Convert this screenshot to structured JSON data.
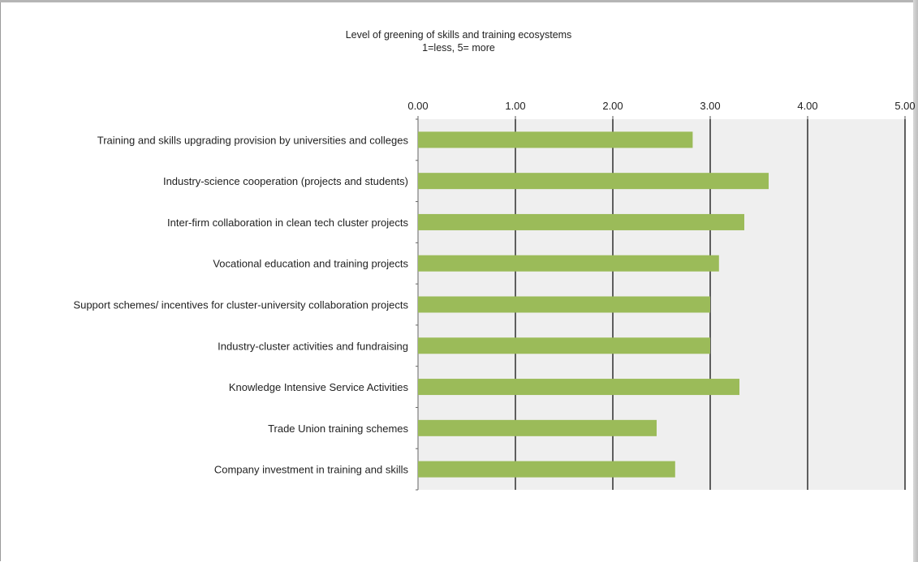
{
  "chart_data": {
    "type": "bar",
    "orientation": "horizontal",
    "title": "Level of greening of skills and training ecosystems",
    "subtitle": "1=less, 5= more",
    "xlim": [
      0,
      5
    ],
    "x_ticks": [
      "0.00",
      "1.00",
      "2.00",
      "3.00",
      "4.00",
      "5.00"
    ],
    "x_tick_values": [
      0,
      1,
      2,
      3,
      4,
      5
    ],
    "x_axis_position": "top",
    "grid": true,
    "legend": "none",
    "categories": [
      "Training and skills upgrading provision by universities and colleges",
      "Industry-science cooperation (projects and students)",
      "Inter-firm collaboration in clean tech cluster projects",
      "Vocational education and training projects",
      "Support schemes/ incentives for cluster-university collaboration projects",
      "Industry-cluster activities and fundraising",
      "Knowledge Intensive Service Activities",
      "Trade Union training schemes",
      "Company investment in training and skills"
    ],
    "values": [
      2.82,
      3.6,
      3.35,
      3.09,
      3.0,
      3.0,
      3.3,
      2.45,
      2.64
    ],
    "colors": {
      "bar": "#9bbb59",
      "plot_background": "#efefef",
      "gridline": "#3a3a3a"
    }
  }
}
